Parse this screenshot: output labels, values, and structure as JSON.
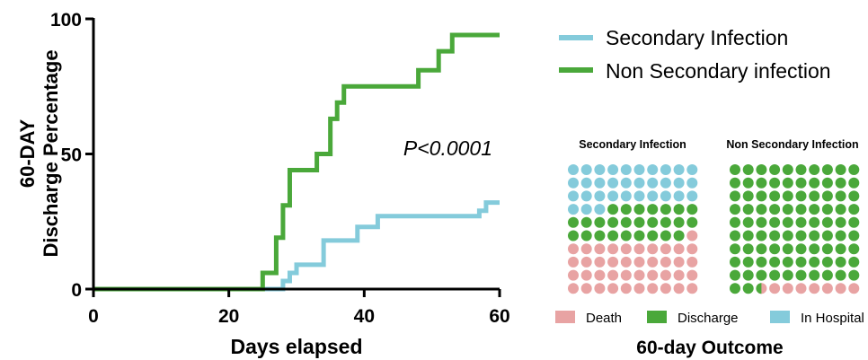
{
  "chart_data": [
    {
      "type": "line",
      "step": true,
      "xlabel": "Days elapsed",
      "ylabel_lines": [
        "60-DAY",
        "Discharge Percentage"
      ],
      "xlim": [
        0,
        60
      ],
      "ylim": [
        0,
        100
      ],
      "xticks": [
        0,
        20,
        40,
        60
      ],
      "yticks": [
        0,
        50,
        100
      ],
      "grid": false,
      "legend_position": "top-right",
      "annotation": "P<0.0001",
      "series": [
        {
          "name": "Secondary Infection",
          "color": "#84cbdb",
          "x": [
            0,
            28,
            29,
            30,
            34,
            38,
            39,
            42,
            57,
            58,
            60
          ],
          "y": [
            0,
            3,
            6,
            9,
            18,
            18,
            23,
            27,
            29,
            32,
            32
          ]
        },
        {
          "name": "Non Secondary infection",
          "color": "#4aa83a",
          "x": [
            0,
            25,
            27,
            28,
            29,
            33,
            35,
            36,
            37,
            40,
            48,
            51,
            53,
            60
          ],
          "y": [
            0,
            6,
            19,
            31,
            44,
            50,
            63,
            69,
            75,
            75,
            81,
            88,
            94,
            94
          ]
        }
      ]
    },
    {
      "type": "waffle",
      "title": "60-day Outcome",
      "categories": [
        {
          "name": "Death",
          "color": "#e8a3a3"
        },
        {
          "name": "Discharge",
          "color": "#4aa83a"
        },
        {
          "name": "In Hospital",
          "color": "#84cbdb"
        }
      ],
      "panels": [
        {
          "name": "Secondary Infection",
          "rows": 10,
          "cols": 10,
          "counts": {
            "In Hospital": 33,
            "Discharge": 26,
            "Death": 41
          },
          "split_dot_index": 49
        },
        {
          "name": "Non Secondary Infection",
          "rows": 10,
          "cols": 10,
          "counts": {
            "In Hospital": 0,
            "Discharge": 93,
            "Death": 7
          },
          "split_dot_index": 92
        }
      ]
    }
  ]
}
